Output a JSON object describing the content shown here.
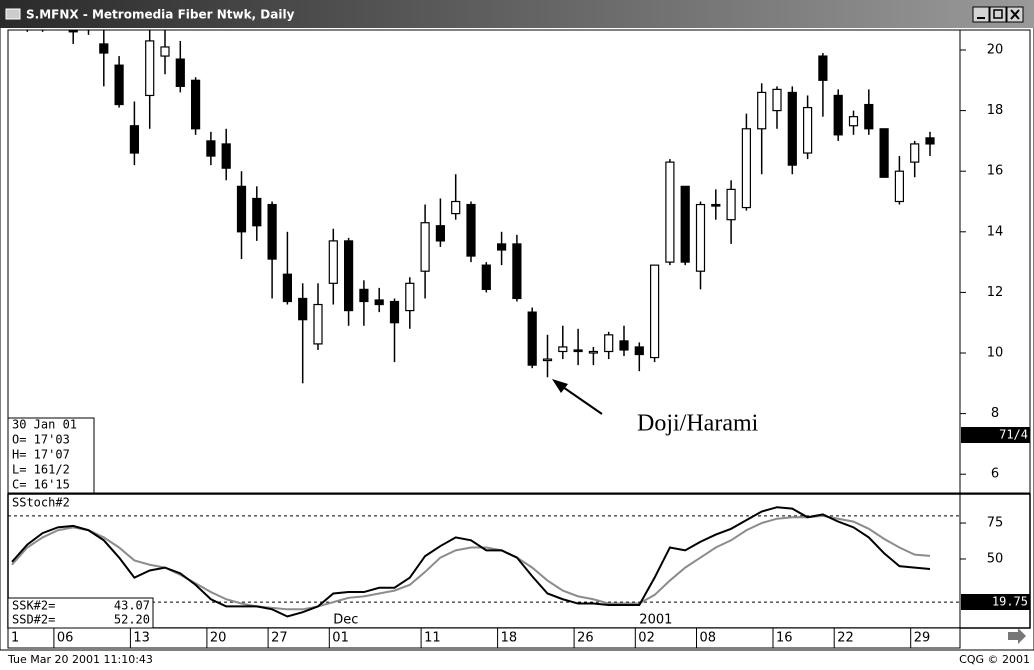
{
  "window": {
    "title": "S.MFNX - Metromedia Fiber Ntwk, Daily"
  },
  "status_bar": {
    "datetime": "Tue Mar 20 2001 11:10:43",
    "copyright": "CQG © 2001"
  },
  "chart_data": [
    {
      "type": "candlestick",
      "categories": [
        "1",
        null,
        null,
        "06",
        null,
        null,
        null,
        null,
        "13",
        null,
        null,
        null,
        null,
        "20",
        null,
        null,
        null,
        "27",
        null,
        null,
        null,
        "01",
        null,
        null,
        null,
        null,
        null,
        "11",
        null,
        null,
        null,
        null,
        "18",
        null,
        null,
        null,
        null,
        "26",
        null,
        null,
        null,
        "02",
        null,
        null,
        null,
        "08",
        null,
        null,
        null,
        null,
        "16",
        null,
        null,
        null,
        "22",
        null,
        null,
        null,
        null,
        "29",
        null
      ],
      "months": [
        null,
        null,
        null,
        null,
        null,
        null,
        null,
        null,
        null,
        null,
        null,
        null,
        null,
        null,
        null,
        null,
        null,
        null,
        null,
        null,
        null,
        "Dec",
        null,
        null,
        null,
        null,
        null,
        null,
        null,
        null,
        null,
        null,
        null,
        null,
        null,
        null,
        null,
        null,
        null,
        null,
        null,
        "2001",
        null,
        null,
        null,
        null,
        null,
        null,
        null,
        null,
        null,
        null,
        null,
        null,
        null,
        null,
        null,
        null,
        null,
        null,
        null
      ],
      "open": [
        21.0,
        20.9,
        20.8,
        21.0,
        21.0,
        20.8,
        20.2,
        19.5,
        17.5,
        18.5,
        19.8,
        19.7,
        19.0,
        17.0,
        16.9,
        15.5,
        15.1,
        14.9,
        12.6,
        11.8,
        10.3,
        12.3,
        13.7,
        12.1,
        11.75,
        11.7,
        11.4,
        12.7,
        14.2,
        14.6,
        14.9,
        12.9,
        13.6,
        13.6,
        11.35,
        9.8,
        10.05,
        10.1,
        10.0,
        10.05,
        10.4,
        10.2,
        9.85,
        13.0,
        15.5,
        12.7,
        14.9,
        14.4,
        14.8,
        17.4,
        18.0,
        18.6,
        16.6,
        19.8,
        18.5,
        17.5,
        18.2,
        17.4,
        15.0,
        16.3,
        17.1
      ],
      "high": [
        21.2,
        21.1,
        21.0,
        21.4,
        21.5,
        21.3,
        20.7,
        19.8,
        18.3,
        20.7,
        20.7,
        20.3,
        19.1,
        17.3,
        17.4,
        16.0,
        15.5,
        15.0,
        14.0,
        12.3,
        12.3,
        14.1,
        13.8,
        12.4,
        12.15,
        11.8,
        12.5,
        14.9,
        15.1,
        15.9,
        15.0,
        13.0,
        14.0,
        13.9,
        11.5,
        10.6,
        10.9,
        10.8,
        10.2,
        10.7,
        10.9,
        10.35,
        12.9,
        16.4,
        15.5,
        15.0,
        15.4,
        15.7,
        17.9,
        18.9,
        18.8,
        18.8,
        18.5,
        19.9,
        18.7,
        18.0,
        18.7,
        17.4,
        16.5,
        17.0,
        17.3
      ],
      "low": [
        20.7,
        20.6,
        20.6,
        20.8,
        20.2,
        20.5,
        18.8,
        18.1,
        16.2,
        17.4,
        19.2,
        18.6,
        17.2,
        16.2,
        15.7,
        13.1,
        13.7,
        11.8,
        11.6,
        9.0,
        10.1,
        11.6,
        10.9,
        10.9,
        11.35,
        9.7,
        10.8,
        11.8,
        13.5,
        14.4,
        13.0,
        12.0,
        12.9,
        11.7,
        9.5,
        9.2,
        9.8,
        9.6,
        9.6,
        9.8,
        9.9,
        9.4,
        9.7,
        12.9,
        12.9,
        12.1,
        14.4,
        13.6,
        14.7,
        15.9,
        17.4,
        15.9,
        16.4,
        17.8,
        17.0,
        17.2,
        17.2,
        15.8,
        14.9,
        15.8,
        16.5
      ],
      "close": [
        20.9,
        20.8,
        20.9,
        21.2,
        20.6,
        21.0,
        19.9,
        18.2,
        16.6,
        20.3,
        20.1,
        18.8,
        17.4,
        16.5,
        16.1,
        14.0,
        14.2,
        13.1,
        11.7,
        11.1,
        11.6,
        13.7,
        11.4,
        11.7,
        11.6,
        11.0,
        12.3,
        14.3,
        13.7,
        15.0,
        13.2,
        12.1,
        13.4,
        11.8,
        9.6,
        9.8,
        10.2,
        10.05,
        10.05,
        10.6,
        10.1,
        9.95,
        12.9,
        16.3,
        13.0,
        14.9,
        14.85,
        15.4,
        17.4,
        18.6,
        18.7,
        16.2,
        18.1,
        19.0,
        17.2,
        17.8,
        17.4,
        15.8,
        16.0,
        16.9,
        16.9
      ],
      "up_color": "#ffffff",
      "down_color": "#000000",
      "ylim": [
        5.38,
        20.66
      ],
      "yticks": [
        6,
        8,
        10,
        12,
        14,
        16,
        18,
        20
      ],
      "annotation": "Doji/Harami",
      "info": [
        "30 Jan 01",
        "O=  17'03",
        "H=  17'07",
        "L=  161/2",
        "C=  16'15"
      ],
      "axis_flag": "71/4"
    },
    {
      "type": "line",
      "title": "SStoch#2",
      "series": [
        {
          "name": "SSK#2=",
          "color": "#000000",
          "values": [
            48,
            60,
            68,
            72,
            73,
            70,
            63,
            51,
            37,
            42,
            44,
            40,
            32,
            22,
            17,
            17,
            17,
            15,
            10,
            13,
            17,
            26,
            27,
            27,
            30,
            30,
            37,
            52,
            59,
            65,
            63,
            56,
            56,
            51,
            38,
            26,
            22,
            19,
            19,
            18,
            18,
            18,
            37,
            58,
            56,
            62,
            67,
            71,
            77,
            83,
            86,
            85,
            79,
            81,
            76,
            72,
            65,
            54,
            45,
            44,
            43.07
          ]
        },
        {
          "name": "SSD#2=",
          "color": "#8c8c8c",
          "values": [
            46,
            58,
            65,
            70,
            72,
            70,
            65,
            58,
            49,
            46,
            44,
            39,
            33,
            27,
            22,
            19,
            17,
            16,
            15,
            15,
            17,
            20,
            23,
            24,
            26,
            28,
            32,
            41,
            51,
            56,
            58,
            58,
            56,
            51,
            44,
            35,
            28,
            24,
            22,
            19,
            19,
            19,
            25,
            35,
            44,
            51,
            58,
            63,
            70,
            75,
            78,
            79,
            79,
            80,
            78,
            76,
            71,
            64,
            58,
            53,
            52.2
          ]
        }
      ],
      "legend_values": [
        "43.07",
        "52.20"
      ],
      "ylim": [
        2,
        94.5
      ],
      "yticks": [
        50,
        75
      ],
      "reference_lines": [
        80,
        20
      ],
      "axis_flag": "19.75"
    }
  ]
}
